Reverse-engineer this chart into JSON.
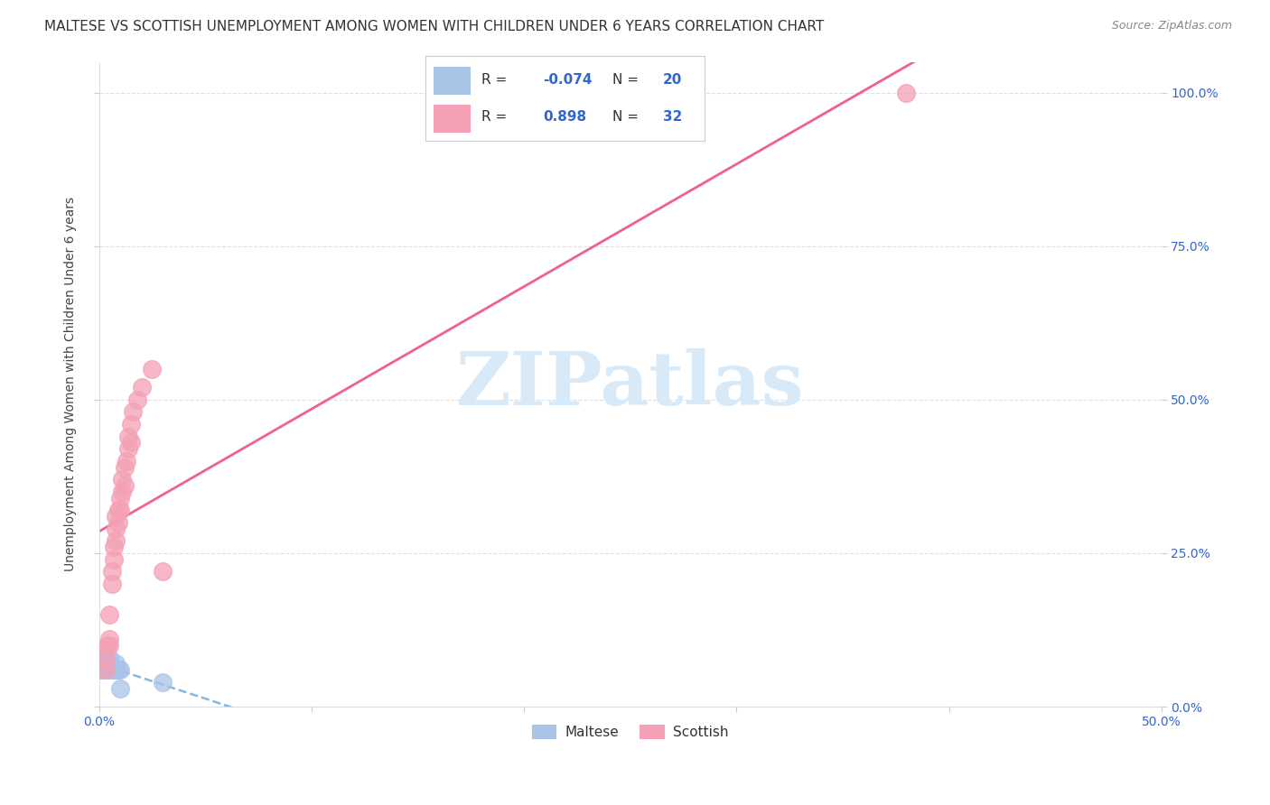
{
  "title": "MALTESE VS SCOTTISH UNEMPLOYMENT AMONG WOMEN WITH CHILDREN UNDER 6 YEARS CORRELATION CHART",
  "source": "Source: ZipAtlas.com",
  "ylabel": "Unemployment Among Women with Children Under 6 years",
  "xlim": [
    0.0,
    0.5
  ],
  "ylim": [
    0.0,
    1.05
  ],
  "x_tick_positions": [
    0.0,
    0.1,
    0.2,
    0.3,
    0.4,
    0.5
  ],
  "x_tick_labels": [
    "0.0%",
    "",
    "",
    "",
    "",
    "50.0%"
  ],
  "y_tick_positions": [
    0.0,
    0.25,
    0.5,
    0.75,
    1.0
  ],
  "y_tick_labels_right": [
    "0.0%",
    "25.0%",
    "50.0%",
    "75.0%",
    "100.0%"
  ],
  "maltese_R": -0.074,
  "maltese_N": 20,
  "scottish_R": 0.898,
  "scottish_N": 32,
  "maltese_color": "#aac4e8",
  "scottish_color": "#f4a0b5",
  "maltese_line_color": "#7ab0d9",
  "scottish_line_color": "#f06090",
  "background_color": "#ffffff",
  "grid_color": "#e0e0e0",
  "watermark_text": "ZIPatlas",
  "watermark_color": "#d8eaf8",
  "maltese_x": [
    0.0,
    0.0,
    0.0,
    0.002,
    0.003,
    0.003,
    0.004,
    0.004,
    0.005,
    0.005,
    0.005,
    0.005,
    0.006,
    0.007,
    0.008,
    0.008,
    0.009,
    0.01,
    0.01,
    0.03
  ],
  "maltese_y": [
    0.06,
    0.07,
    0.08,
    0.06,
    0.06,
    0.08,
    0.06,
    0.07,
    0.06,
    0.065,
    0.07,
    0.08,
    0.065,
    0.06,
    0.06,
    0.07,
    0.06,
    0.06,
    0.03,
    0.04
  ],
  "scottish_x": [
    0.003,
    0.003,
    0.004,
    0.005,
    0.005,
    0.005,
    0.006,
    0.006,
    0.007,
    0.007,
    0.008,
    0.008,
    0.008,
    0.009,
    0.009,
    0.01,
    0.01,
    0.011,
    0.011,
    0.012,
    0.012,
    0.013,
    0.014,
    0.014,
    0.015,
    0.015,
    0.016,
    0.018,
    0.02,
    0.025,
    0.03,
    0.38
  ],
  "scottish_y": [
    0.06,
    0.08,
    0.1,
    0.1,
    0.11,
    0.15,
    0.2,
    0.22,
    0.24,
    0.26,
    0.27,
    0.29,
    0.31,
    0.3,
    0.32,
    0.32,
    0.34,
    0.35,
    0.37,
    0.36,
    0.39,
    0.4,
    0.42,
    0.44,
    0.43,
    0.46,
    0.48,
    0.5,
    0.52,
    0.55,
    0.22,
    1.0
  ],
  "title_fontsize": 11,
  "label_fontsize": 10,
  "tick_fontsize": 10,
  "legend_fontsize": 11
}
